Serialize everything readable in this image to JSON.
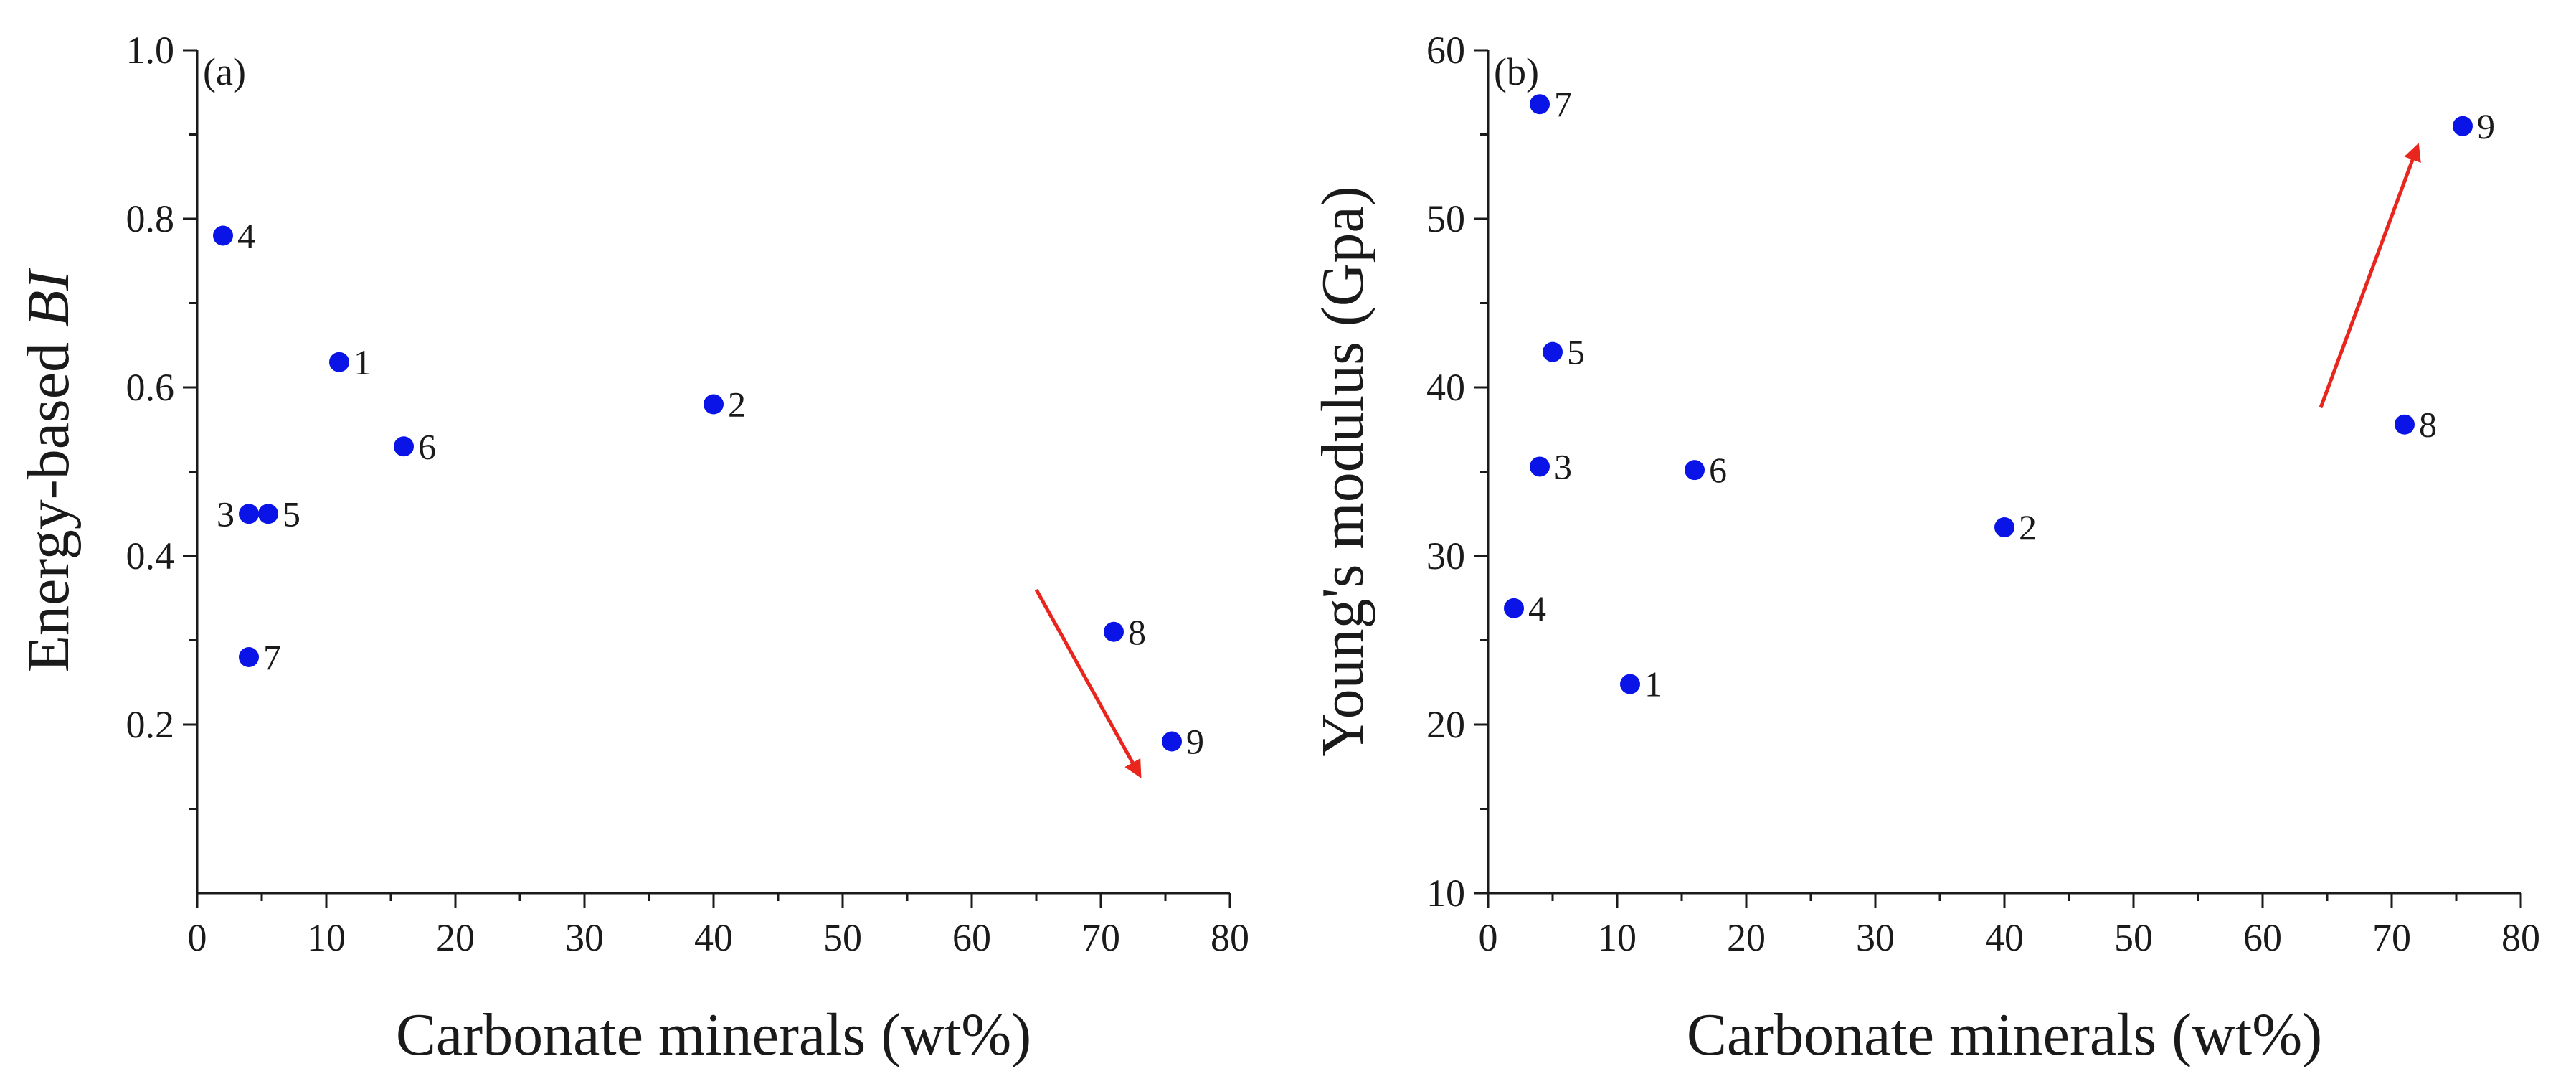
{
  "chart_data": [
    {
      "type": "scatter",
      "panel_label": "(a)",
      "xlabel": "Carbonate minerals (wt%)",
      "ylabel_parts": [
        "Energy-based ",
        "BI"
      ],
      "xlim": [
        0,
        80
      ],
      "ylim": [
        0.0,
        1.0
      ],
      "x_ticks": [
        0,
        10,
        20,
        30,
        40,
        50,
        60,
        70,
        80
      ],
      "y_ticks": [
        0.2,
        0.4,
        0.6,
        0.8,
        1.0
      ],
      "y_tick_labels": [
        "0.2",
        "0.4",
        "0.6",
        "0.8",
        "1.0"
      ],
      "grid": false,
      "marker_color": "#0a14e6",
      "points": [
        {
          "label": "1",
          "x": 11,
          "y": 0.63,
          "label_side": "right"
        },
        {
          "label": "2",
          "x": 40,
          "y": 0.58,
          "label_side": "right"
        },
        {
          "label": "3",
          "x": 4,
          "y": 0.45,
          "label_side": "left"
        },
        {
          "label": "4",
          "x": 2,
          "y": 0.78,
          "label_side": "right"
        },
        {
          "label": "5",
          "x": 5.5,
          "y": 0.45,
          "label_side": "right"
        },
        {
          "label": "6",
          "x": 16,
          "y": 0.53,
          "label_side": "right"
        },
        {
          "label": "7",
          "x": 4,
          "y": 0.28,
          "label_side": "right"
        },
        {
          "label": "8",
          "x": 71,
          "y": 0.31,
          "label_side": "right"
        },
        {
          "label": "9",
          "x": 75.5,
          "y": 0.18,
          "label_side": "right"
        }
      ],
      "arrow": {
        "color": "#e8261e",
        "from": [
          65,
          0.36
        ],
        "to": [
          73,
          0.14
        ]
      }
    },
    {
      "type": "scatter",
      "panel_label": "(b)",
      "xlabel": "Carbonate minerals (wt%)",
      "ylabel_parts": [
        "Young's modulus (Gpa)"
      ],
      "xlim": [
        0,
        80
      ],
      "ylim": [
        10,
        60
      ],
      "x_ticks": [
        0,
        10,
        20,
        30,
        40,
        50,
        60,
        70,
        80
      ],
      "y_ticks": [
        10,
        20,
        30,
        40,
        50,
        60
      ],
      "y_tick_labels": [
        "10",
        "20",
        "30",
        "40",
        "50",
        "60"
      ],
      "grid": false,
      "marker_color": "#0a14e6",
      "points": [
        {
          "label": "1",
          "x": 11,
          "y": 22.4,
          "label_side": "right"
        },
        {
          "label": "2",
          "x": 40,
          "y": 31.7,
          "label_side": "right"
        },
        {
          "label": "3",
          "x": 4,
          "y": 35.3,
          "label_side": "right"
        },
        {
          "label": "4",
          "x": 2,
          "y": 26.9,
          "label_side": "right"
        },
        {
          "label": "5",
          "x": 5,
          "y": 42.1,
          "label_side": "right"
        },
        {
          "label": "6",
          "x": 16,
          "y": 35.1,
          "label_side": "right"
        },
        {
          "label": "7",
          "x": 4,
          "y": 56.8,
          "label_side": "right"
        },
        {
          "label": "8",
          "x": 71,
          "y": 37.8,
          "label_side": "right"
        },
        {
          "label": "9",
          "x": 75.5,
          "y": 55.5,
          "label_side": "right"
        }
      ],
      "arrow": {
        "color": "#e8261e",
        "from": [
          64.5,
          38.8
        ],
        "to": [
          72,
          54.3
        ]
      }
    }
  ]
}
